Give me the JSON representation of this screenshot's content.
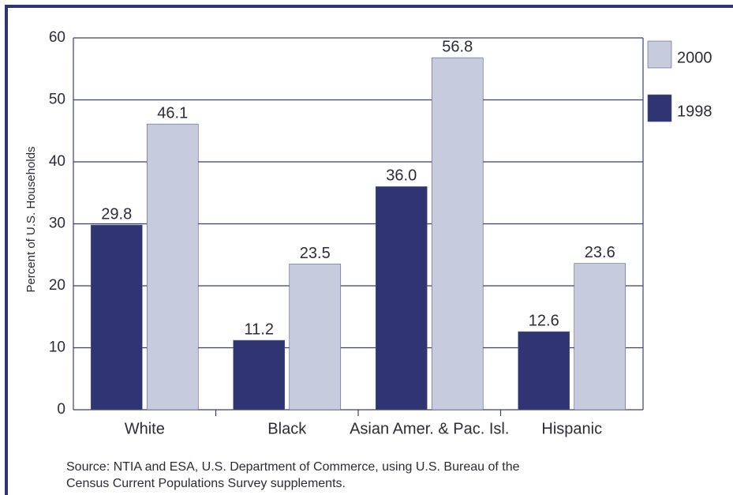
{
  "chart_data": {
    "type": "bar",
    "categories": [
      "White",
      "Black",
      "Asian Amer. & Pac. Isl.",
      "Hispanic"
    ],
    "series": [
      {
        "name": "1998",
        "color": "#2f3572",
        "values": [
          29.8,
          11.2,
          36.0,
          12.6
        ],
        "value_labels": [
          "29.8",
          "11.2",
          "36.0",
          "12.6"
        ]
      },
      {
        "name": "2000",
        "color": "#c6ccdd",
        "values": [
          46.1,
          23.5,
          56.8,
          23.6
        ],
        "value_labels": [
          "46.1",
          "23.5",
          "56.8",
          "23.6"
        ]
      }
    ],
    "ylabel": "Percent of U.S. Households",
    "ylim": [
      0,
      60
    ],
    "yticks": [
      0,
      10,
      20,
      30,
      40,
      50,
      60
    ],
    "grid": true,
    "legend": "right",
    "source": [
      "Source: NTIA and ESA, U.S. Department of Commerce, using U.S. Bureau of the",
      "Census Current Populations Survey supplements."
    ]
  }
}
